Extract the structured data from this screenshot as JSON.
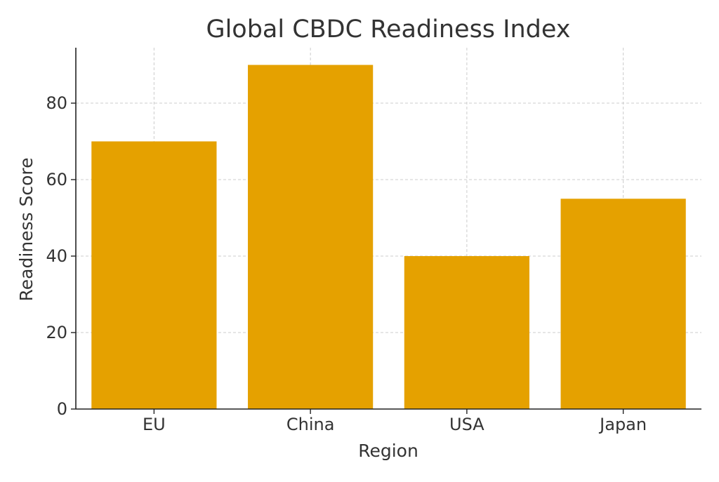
{
  "chart_data": {
    "type": "bar",
    "title": "Global CBDC Readiness Index",
    "xlabel": "Region",
    "ylabel": "Readiness Score",
    "categories": [
      "EU",
      "China",
      "USA",
      "Japan"
    ],
    "values": [
      70,
      90,
      40,
      55
    ],
    "ylim": [
      0,
      94.5
    ],
    "yticks": [
      0,
      20,
      40,
      60,
      80
    ],
    "grid": true,
    "bar_color": "#E5A100"
  }
}
